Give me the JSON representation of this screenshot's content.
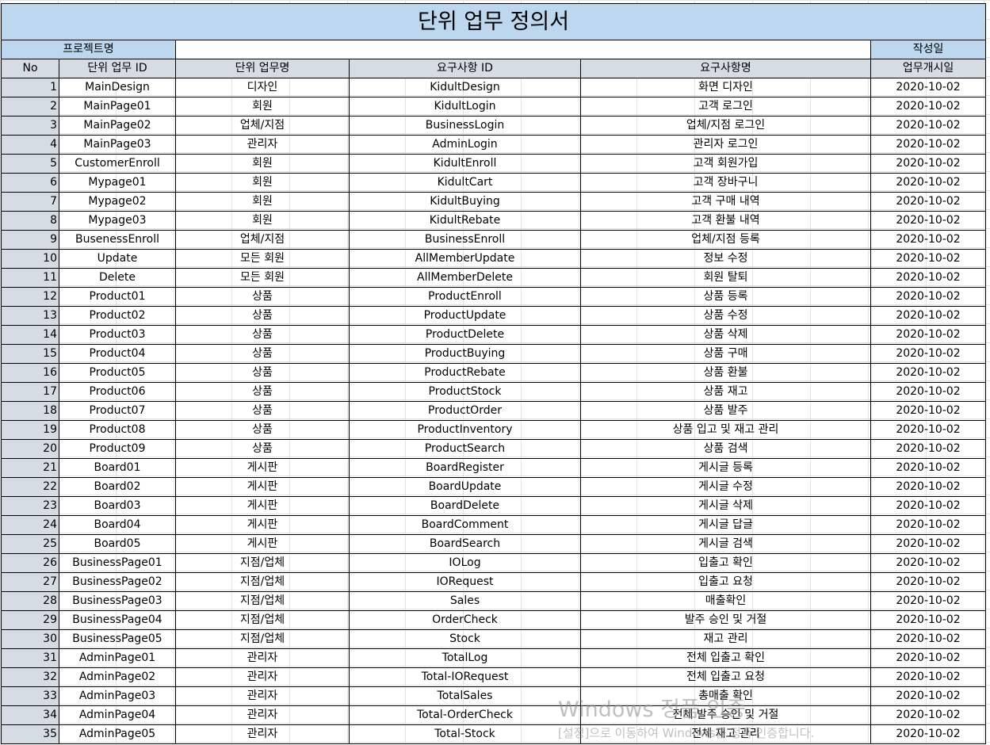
{
  "title": "단위 업무 정의서",
  "project_label": "프로젝트명",
  "project_value": "",
  "date_label": "작성일",
  "date_value": "",
  "headers": [
    "No",
    "단위 업무 ID",
    "단위 업무명",
    "요구사항 ID",
    "요구사항명",
    "업무개시일"
  ],
  "rows": [
    [
      "1",
      "MainDesign",
      "디자인",
      "KidultDesign",
      "화면 디자인",
      "2020-10-02"
    ],
    [
      "2",
      "MainPage01",
      "회원",
      "KidultLogin",
      "고객 로그인",
      "2020-10-02"
    ],
    [
      "3",
      "MainPage02",
      "업체/지점",
      "BusinessLogin",
      "업체/지점 로그인",
      "2020-10-02"
    ],
    [
      "4",
      "MainPage03",
      "관리자",
      "AdminLogin",
      "관리자 로그인",
      "2020-10-02"
    ],
    [
      "5",
      "CustomerEnroll",
      "회원",
      "KidultEnroll",
      "고객 회원가입",
      "2020-10-02"
    ],
    [
      "6",
      "Mypage01",
      "회원",
      "KidultCart",
      "고객 장바구니",
      "2020-10-02"
    ],
    [
      "7",
      "Mypage02",
      "회원",
      "KidultBuying",
      "고객 구매 내역",
      "2020-10-02"
    ],
    [
      "8",
      "Mypage03",
      "회원",
      "KidultRebate",
      "고객 환불 내역",
      "2020-10-02"
    ],
    [
      "9",
      "BusenessEnroll",
      "업체/지점",
      "BusinessEnroll",
      "업체/지점 등록",
      "2020-10-02"
    ],
    [
      "10",
      "Update",
      "모든 회원",
      "AllMemberUpdate",
      "정보 수정",
      "2020-10-02"
    ],
    [
      "11",
      "Delete",
      "모든 회원",
      "AllMemberDelete",
      "회원 탈퇴",
      "2020-10-02"
    ],
    [
      "12",
      "Product01",
      "상품",
      "ProductEnroll",
      "상품 등록",
      "2020-10-02"
    ],
    [
      "13",
      "Product02",
      "상품",
      "ProductUpdate",
      "상품 수정",
      "2020-10-02"
    ],
    [
      "14",
      "Product03",
      "상품",
      "ProductDelete",
      "상품 삭제",
      "2020-10-02"
    ],
    [
      "15",
      "Product04",
      "상품",
      "ProductBuying",
      "상품 구매",
      "2020-10-02"
    ],
    [
      "16",
      "Product05",
      "상품",
      "ProductRebate",
      "상품 환불",
      "2020-10-02"
    ],
    [
      "17",
      "Product06",
      "상품",
      "ProductStock",
      "상품 재고",
      "2020-10-02"
    ],
    [
      "18",
      "Product07",
      "상품",
      "ProductOrder",
      "상품 발주",
      "2020-10-02"
    ],
    [
      "19",
      "Product08",
      "상품",
      "ProductInventory",
      "상품 입고 및 재고 관리",
      "2020-10-02"
    ],
    [
      "20",
      "Product09",
      "상품",
      "ProductSearch",
      "상품 검색",
      "2020-10-02"
    ],
    [
      "21",
      "Board01",
      "게시판",
      "BoardRegister",
      "게시글 등록",
      "2020-10-02"
    ],
    [
      "22",
      "Board02",
      "게시판",
      "BoardUpdate",
      "게시글 수정",
      "2020-10-02"
    ],
    [
      "23",
      "Board03",
      "게시판",
      "BoardDelete",
      "게시글 삭제",
      "2020-10-02"
    ],
    [
      "24",
      "Board04",
      "게시판",
      "BoardComment",
      "게시글 답글",
      "2020-10-02"
    ],
    [
      "25",
      "Board05",
      "게시판",
      "BoardSearch",
      "게시글 검색",
      "2020-10-02"
    ],
    [
      "26",
      "BusinessPage01",
      "지점/업체",
      "IOLog",
      "입출고 확인",
      "2020-10-02"
    ],
    [
      "27",
      "BusinessPage02",
      "지점/업체",
      "IORequest",
      "입출고 요청",
      "2020-10-02"
    ],
    [
      "28",
      "BusinessPage03",
      "지점/업체",
      "Sales",
      "매출확인",
      "2020-10-02"
    ],
    [
      "29",
      "BusinessPage04",
      "지점/업체",
      "OrderCheck",
      "발주 승인 및 거절",
      "2020-10-02"
    ],
    [
      "30",
      "BusinessPage05",
      "지점/업체",
      "Stock",
      "재고 관리",
      "2020-10-02"
    ],
    [
      "31",
      "AdminPage01",
      "관리자",
      "TotalLog",
      "전체 입출고 확인",
      "2020-10-02"
    ],
    [
      "32",
      "AdminPage02",
      "관리자",
      "Total-IORequest",
      "전체 입출고 요청",
      "2020-10-02"
    ],
    [
      "33",
      "AdminPage03",
      "관리자",
      "TotalSales",
      "총매출 확인",
      "2020-10-02"
    ],
    [
      "34",
      "AdminPage04",
      "관리자",
      "Total-OrderCheck",
      "전체 발주 승인 및 거절",
      "2020-10-02"
    ],
    [
      "35",
      "AdminPage05",
      "관리자",
      "Total-Stock",
      "전체 재고 관리",
      "2020-10-02"
    ]
  ],
  "watermark": {
    "line1": "Windows 정품 인증",
    "line2": "[설정]으로 이동하여 Windows를 정품 인증합니다."
  }
}
